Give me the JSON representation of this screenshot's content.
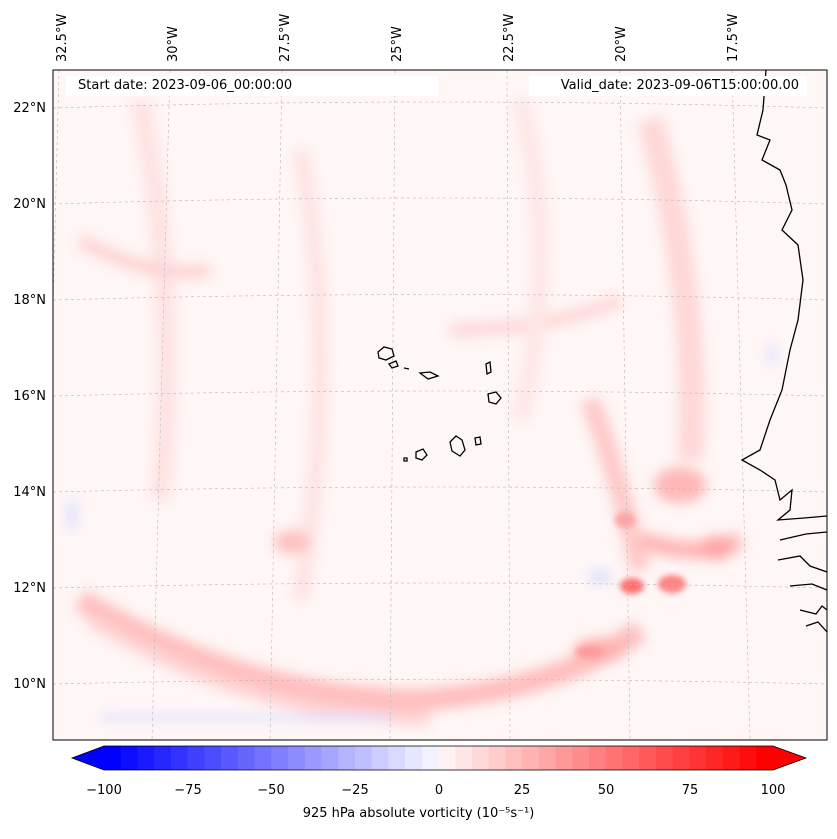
{
  "map": {
    "start_date": "Start date: 2023-09-06_00:00:00",
    "valid_date": "Valid_date: 2023-09-06T15:00:00.00",
    "lon_ticks": [
      "32.5°W",
      "30°W",
      "27.5°W",
      "25°W",
      "22.5°W",
      "20°W",
      "17.5°W"
    ],
    "lat_ticks": [
      "22°N",
      "20°N",
      "18°N",
      "16°N",
      "14°N",
      "12°N",
      "10°N"
    ],
    "extent": {
      "lon_min": -33.5,
      "lon_max": -15.9,
      "lat_min": 8.9,
      "lat_max": 22.8
    }
  },
  "colorbar": {
    "ticks": [
      "−100",
      "−75",
      "−50",
      "−25",
      "0",
      "25",
      "50",
      "75",
      "100"
    ],
    "label": "925 hPa absolute vorticity (10⁻⁵s⁻¹)",
    "min": -100,
    "max": 100,
    "step": 5,
    "neg_color": "#0000ff",
    "pos_color": "#ff0000"
  },
  "colors": {
    "coast": "#000000",
    "grid": "#b0b0b0",
    "field_base": "#fff6f6"
  }
}
